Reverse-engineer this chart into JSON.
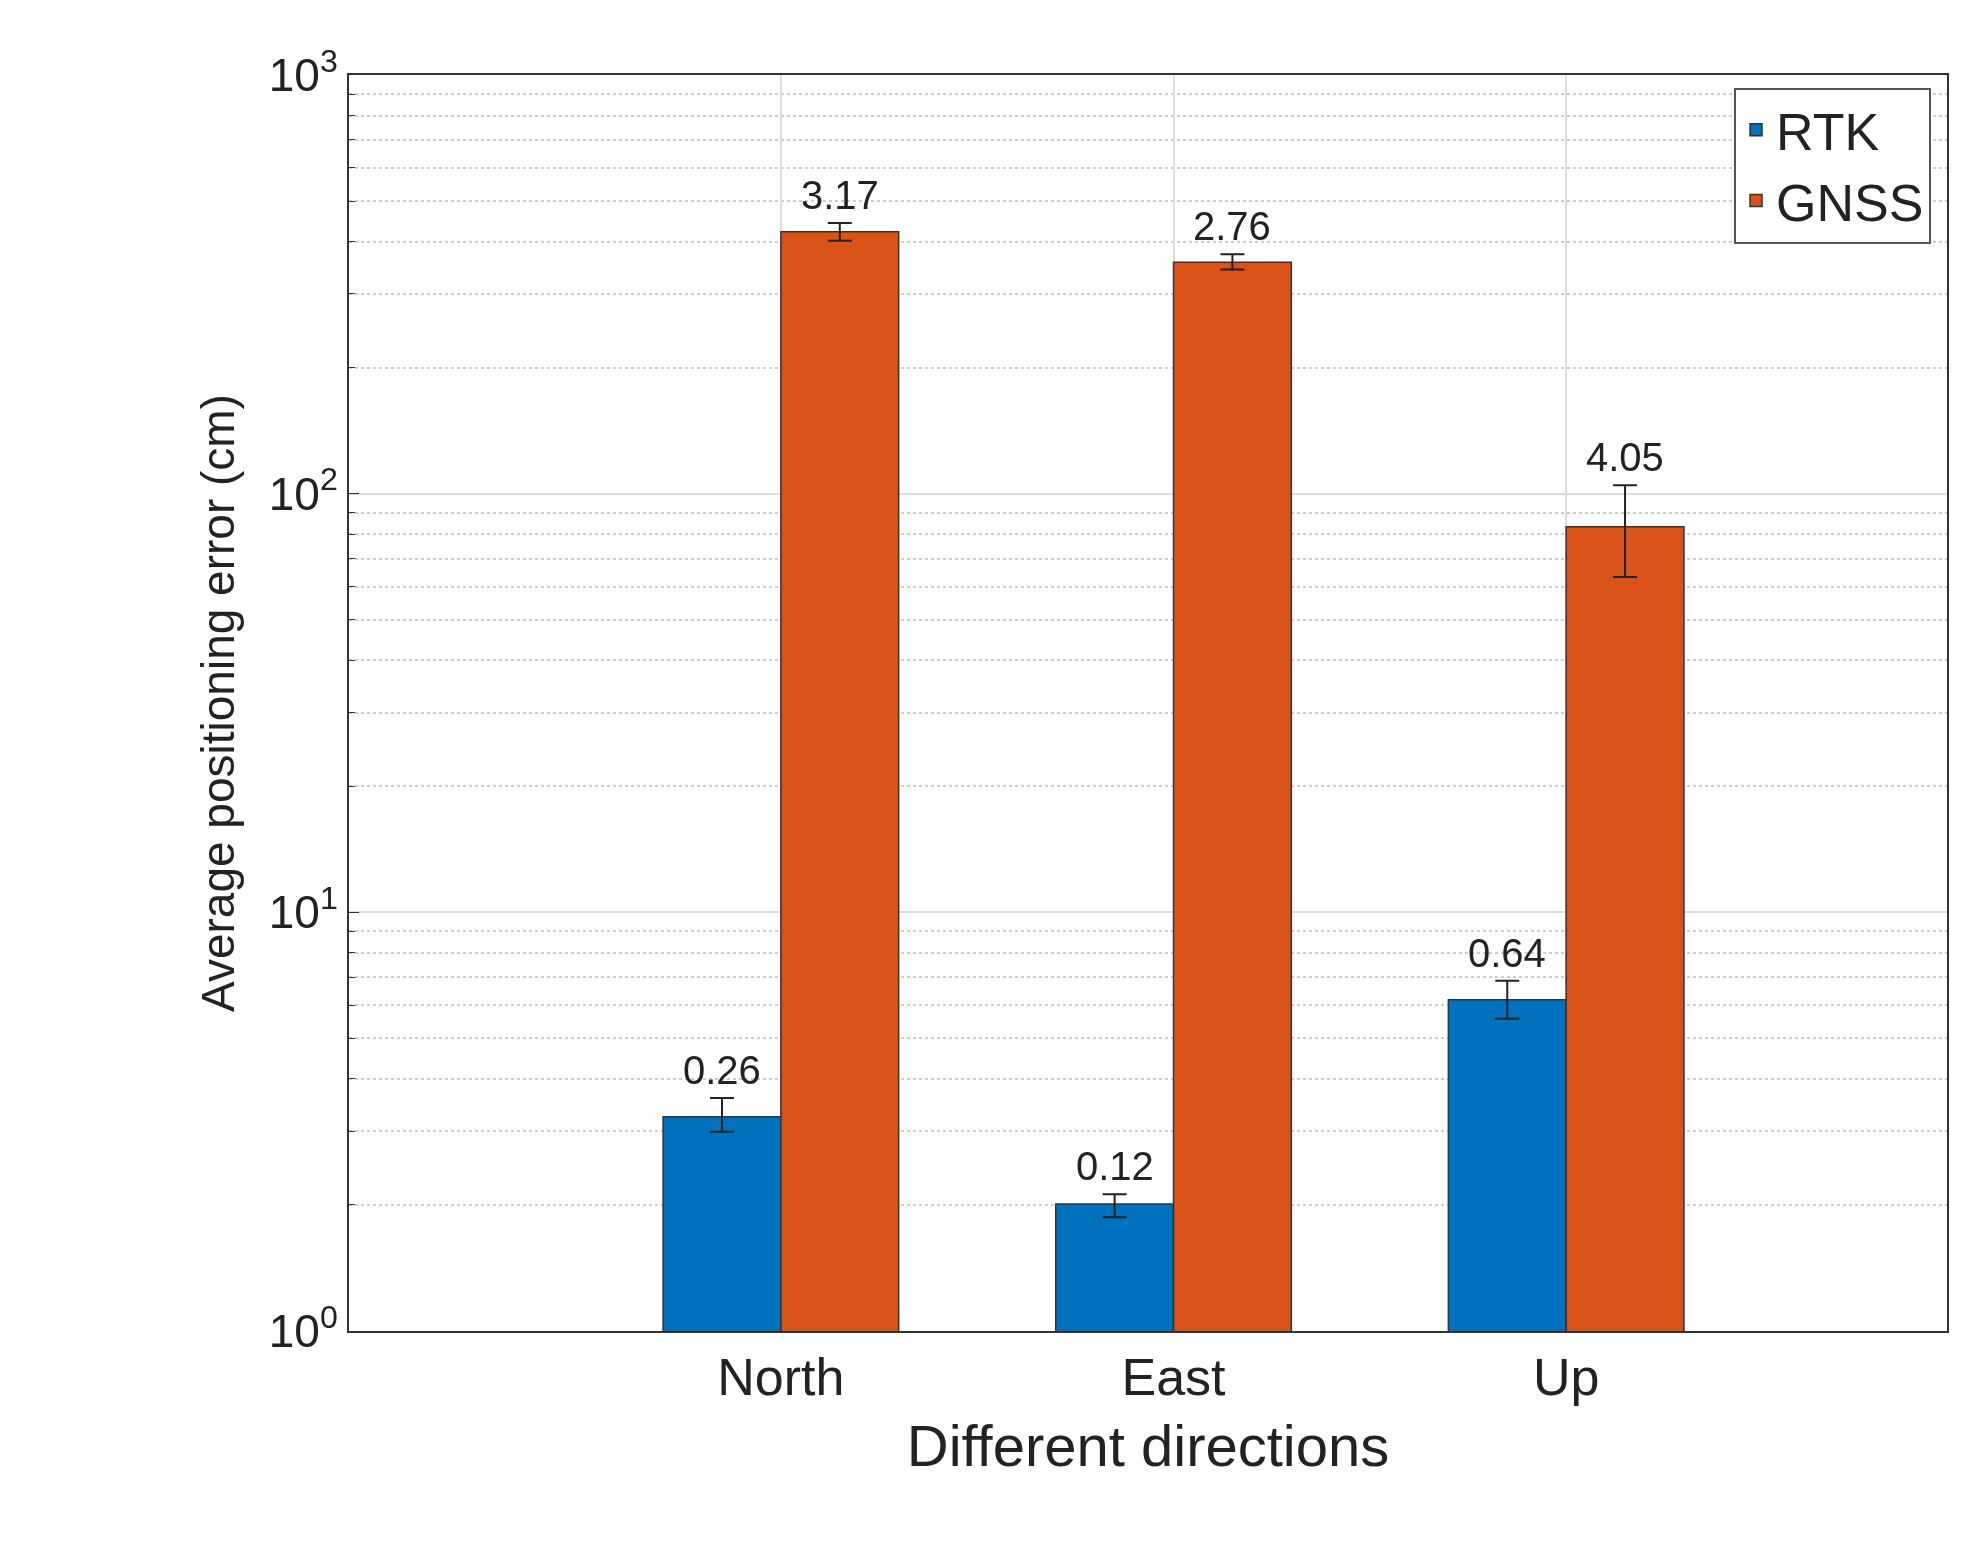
{
  "chart_data": {
    "type": "bar",
    "xlabel": "Different directions",
    "ylabel": "Average positioning error (cm)",
    "categories": [
      "North",
      "East",
      "Up"
    ],
    "series": [
      {
        "name": "RTK",
        "color": "#0072bd",
        "values": [
          3.25,
          2.01,
          6.18
        ],
        "errors": [
          [
            2.99,
            3.6
          ],
          [
            1.87,
            2.12
          ],
          [
            5.57,
            6.86
          ]
        ]
      },
      {
        "name": "GNSS",
        "color": "#d95319",
        "values": [
          422,
          357,
          83.4
        ],
        "errors": [
          [
            402,
            443
          ],
          [
            343,
            373
          ],
          [
            63.2,
            104.7
          ]
        ]
      }
    ],
    "annotations": [
      {
        "text": "0.26",
        "x": "North",
        "y": 3.25
      },
      {
        "text": "0.12",
        "x": "East",
        "y": 2.01
      },
      {
        "text": "0.64",
        "x": "Up",
        "y": 6.18
      },
      {
        "text": "3.17",
        "x": "North",
        "y": 422
      },
      {
        "text": "2.76",
        "x": "East",
        "y": 357
      },
      {
        "text": "4.05",
        "x": "Up",
        "y": 83.4
      }
    ],
    "log": "y",
    "ylim": [
      1,
      1000
    ],
    "yticks": [
      {
        "value": 1,
        "label": "10$^{0}$"
      },
      {
        "value": 10,
        "label": "10$^{1}$"
      },
      {
        "value": 100,
        "label": "10$^{2}$"
      },
      {
        "value": 1000,
        "label": "10$^{3}$"
      }
    ],
    "grid": true,
    "legend": "top right"
  }
}
